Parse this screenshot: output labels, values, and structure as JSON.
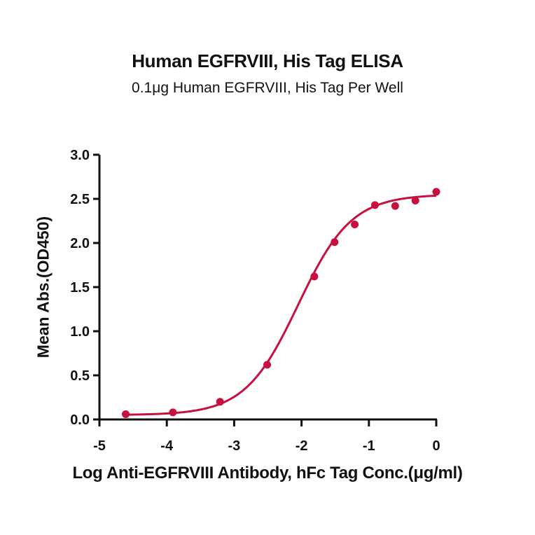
{
  "title": "Human EGFRVIII, His Tag ELISA",
  "subtitle": "0.1μg Human EGFRVIII, His Tag Per Well",
  "colors": {
    "series": "#C8103E",
    "axis": "#111111"
  },
  "chart_data": {
    "type": "scatter",
    "title": "Human EGFRVIII, His Tag ELISA",
    "subtitle": "0.1μg Human EGFRVIII, His Tag Per Well",
    "xlabel": "Log Anti-EGFRVIII Antibody, hFc Tag Conc.(μg/ml)",
    "ylabel": "Mean Abs.(OD450)",
    "xlim": [
      -5,
      0
    ],
    "ylim": [
      0,
      3.0
    ],
    "xticks": [
      "-5",
      "-4",
      "-3",
      "-2",
      "-1",
      "0"
    ],
    "yticks": [
      "0.0",
      "0.5",
      "1.0",
      "1.5",
      "2.0",
      "2.5",
      "3.0"
    ],
    "grid": false,
    "legend": null,
    "series": [
      {
        "name": "Human EGFRVIII, His Tag",
        "x": [
          -4.61,
          -3.91,
          -3.21,
          -2.51,
          -1.81,
          -1.51,
          -1.21,
          -0.91,
          -0.61,
          -0.31,
          0.0
        ],
        "y": [
          0.06,
          0.08,
          0.2,
          0.62,
          1.62,
          2.01,
          2.21,
          2.43,
          2.42,
          2.48,
          2.58
        ],
        "fit": {
          "model": "4PL",
          "bottom": 0.05,
          "top": 2.55,
          "logEC50": -2.05,
          "hill": 1.1
        }
      }
    ]
  }
}
